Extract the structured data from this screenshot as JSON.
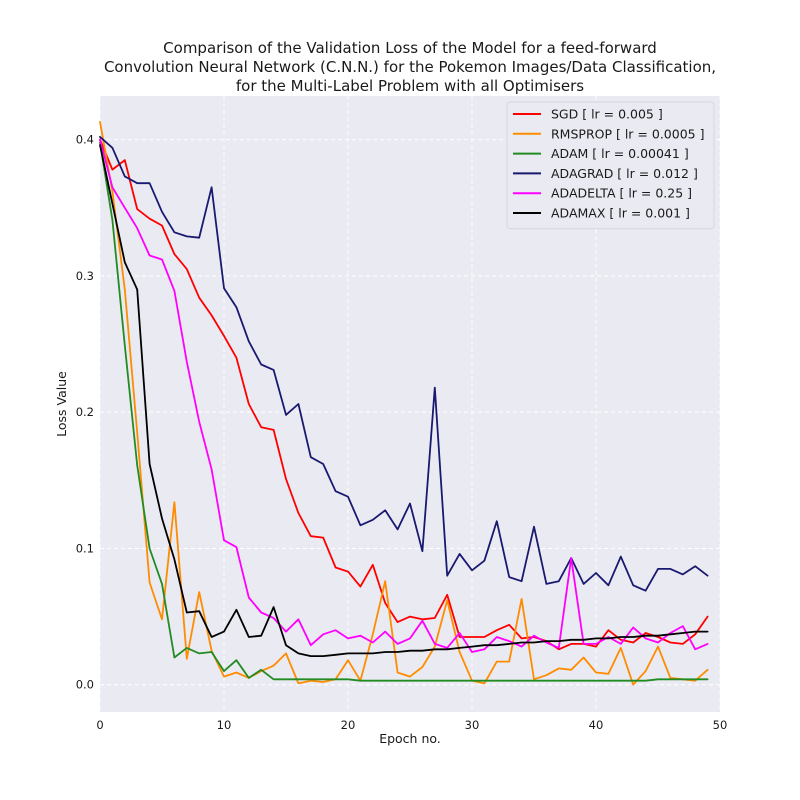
{
  "chart_data": {
    "type": "line",
    "title_lines": [
      "Comparison of the Validation Loss of the Model for a feed-forward",
      "Convolution Neural Network (C.N.N.) for the Pokemon Images/Data Classification,",
      "for the Multi-Label Problem with all Optimisers"
    ],
    "xlabel": "Epoch no.",
    "ylabel": "Loss Value",
    "xlim": [
      0,
      50
    ],
    "ylim": [
      -0.02,
      0.432
    ],
    "xticks": [
      0,
      10,
      20,
      30,
      40,
      50
    ],
    "yticks": [
      0.0,
      0.1,
      0.2,
      0.3,
      0.4
    ],
    "ytick_labels": [
      "0.0",
      "0.1",
      "0.2",
      "0.3",
      "0.4"
    ],
    "grid": true,
    "background": "#eaeaf2",
    "grid_color": "#ffffff",
    "legend_position": "top-right",
    "x": [
      0,
      1,
      2,
      3,
      4,
      5,
      6,
      7,
      8,
      9,
      10,
      11,
      12,
      13,
      14,
      15,
      16,
      17,
      18,
      19,
      20,
      21,
      22,
      23,
      24,
      25,
      26,
      27,
      28,
      29,
      30,
      31,
      32,
      33,
      34,
      35,
      36,
      37,
      38,
      39,
      40,
      41,
      42,
      43,
      44,
      45,
      46,
      47,
      48,
      49
    ],
    "series": [
      {
        "name": "SGD [ lr = 0.005 ]",
        "color": "#ff0000",
        "values": [
          0.4,
          0.378,
          0.385,
          0.349,
          0.342,
          0.337,
          0.316,
          0.305,
          0.284,
          0.271,
          0.256,
          0.24,
          0.206,
          0.189,
          0.187,
          0.151,
          0.126,
          0.109,
          0.108,
          0.086,
          0.083,
          0.072,
          0.088,
          0.06,
          0.046,
          0.05,
          0.048,
          0.049,
          0.066,
          0.035,
          0.035,
          0.035,
          0.04,
          0.044,
          0.034,
          0.035,
          0.032,
          0.026,
          0.03,
          0.03,
          0.028,
          0.04,
          0.033,
          0.031,
          0.038,
          0.035,
          0.031,
          0.03,
          0.037,
          0.05
        ]
      },
      {
        "name": "RMSPROP [ lr = 0.0005 ]",
        "color": "#ff8c00",
        "values": [
          0.413,
          0.362,
          0.29,
          0.185,
          0.075,
          0.048,
          0.134,
          0.019,
          0.068,
          0.025,
          0.006,
          0.009,
          0.005,
          0.01,
          0.014,
          0.023,
          0.001,
          0.003,
          0.002,
          0.004,
          0.018,
          0.003,
          0.037,
          0.076,
          0.009,
          0.006,
          0.013,
          0.028,
          0.062,
          0.024,
          0.003,
          0.001,
          0.017,
          0.017,
          0.063,
          0.004,
          0.007,
          0.012,
          0.011,
          0.02,
          0.009,
          0.008,
          0.027,
          0.0,
          0.01,
          0.028,
          0.005,
          0.004,
          0.003,
          0.011
        ]
      },
      {
        "name": "ADAM [ lr = 0.00041 ]",
        "color": "#228b22",
        "values": [
          0.398,
          0.341,
          0.249,
          0.161,
          0.1,
          0.074,
          0.02,
          0.027,
          0.023,
          0.024,
          0.01,
          0.018,
          0.005,
          0.011,
          0.004,
          0.004,
          0.004,
          0.004,
          0.004,
          0.004,
          0.004,
          0.003,
          0.003,
          0.003,
          0.003,
          0.003,
          0.003,
          0.003,
          0.003,
          0.003,
          0.003,
          0.003,
          0.003,
          0.003,
          0.003,
          0.003,
          0.003,
          0.003,
          0.003,
          0.003,
          0.003,
          0.003,
          0.003,
          0.003,
          0.003,
          0.004,
          0.004,
          0.004,
          0.004,
          0.004
        ]
      },
      {
        "name": "ADAGRAD [ lr = 0.012 ]",
        "color": "#191970",
        "values": [
          0.402,
          0.394,
          0.373,
          0.368,
          0.368,
          0.347,
          0.332,
          0.329,
          0.328,
          0.365,
          0.291,
          0.277,
          0.252,
          0.235,
          0.231,
          0.198,
          0.206,
          0.167,
          0.162,
          0.142,
          0.138,
          0.117,
          0.121,
          0.128,
          0.114,
          0.133,
          0.098,
          0.218,
          0.08,
          0.096,
          0.084,
          0.091,
          0.12,
          0.079,
          0.076,
          0.116,
          0.074,
          0.076,
          0.093,
          0.074,
          0.082,
          0.073,
          0.094,
          0.073,
          0.069,
          0.085,
          0.085,
          0.081,
          0.087,
          0.08
        ]
      },
      {
        "name": "ADADELTA [ lr = 0.25 ]",
        "color": "#ff00ff",
        "values": [
          0.4,
          0.365,
          0.35,
          0.335,
          0.315,
          0.312,
          0.289,
          0.237,
          0.193,
          0.158,
          0.106,
          0.101,
          0.064,
          0.053,
          0.049,
          0.039,
          0.048,
          0.029,
          0.037,
          0.04,
          0.034,
          0.036,
          0.031,
          0.039,
          0.03,
          0.034,
          0.047,
          0.03,
          0.027,
          0.038,
          0.024,
          0.026,
          0.035,
          0.032,
          0.028,
          0.036,
          0.031,
          0.027,
          0.093,
          0.03,
          0.03,
          0.035,
          0.03,
          0.042,
          0.034,
          0.031,
          0.038,
          0.043,
          0.026,
          0.03
        ]
      },
      {
        "name": "ADAMAX [ lr = 0.001 ]",
        "color": "#000000",
        "values": [
          0.396,
          0.353,
          0.31,
          0.29,
          0.162,
          0.122,
          0.092,
          0.053,
          0.054,
          0.035,
          0.039,
          0.055,
          0.035,
          0.036,
          0.057,
          0.029,
          0.023,
          0.021,
          0.021,
          0.022,
          0.023,
          0.023,
          0.023,
          0.024,
          0.024,
          0.025,
          0.025,
          0.026,
          0.026,
          0.027,
          0.028,
          0.029,
          0.029,
          0.03,
          0.031,
          0.031,
          0.032,
          0.032,
          0.033,
          0.033,
          0.034,
          0.034,
          0.035,
          0.035,
          0.036,
          0.036,
          0.037,
          0.038,
          0.039,
          0.039
        ]
      }
    ]
  }
}
